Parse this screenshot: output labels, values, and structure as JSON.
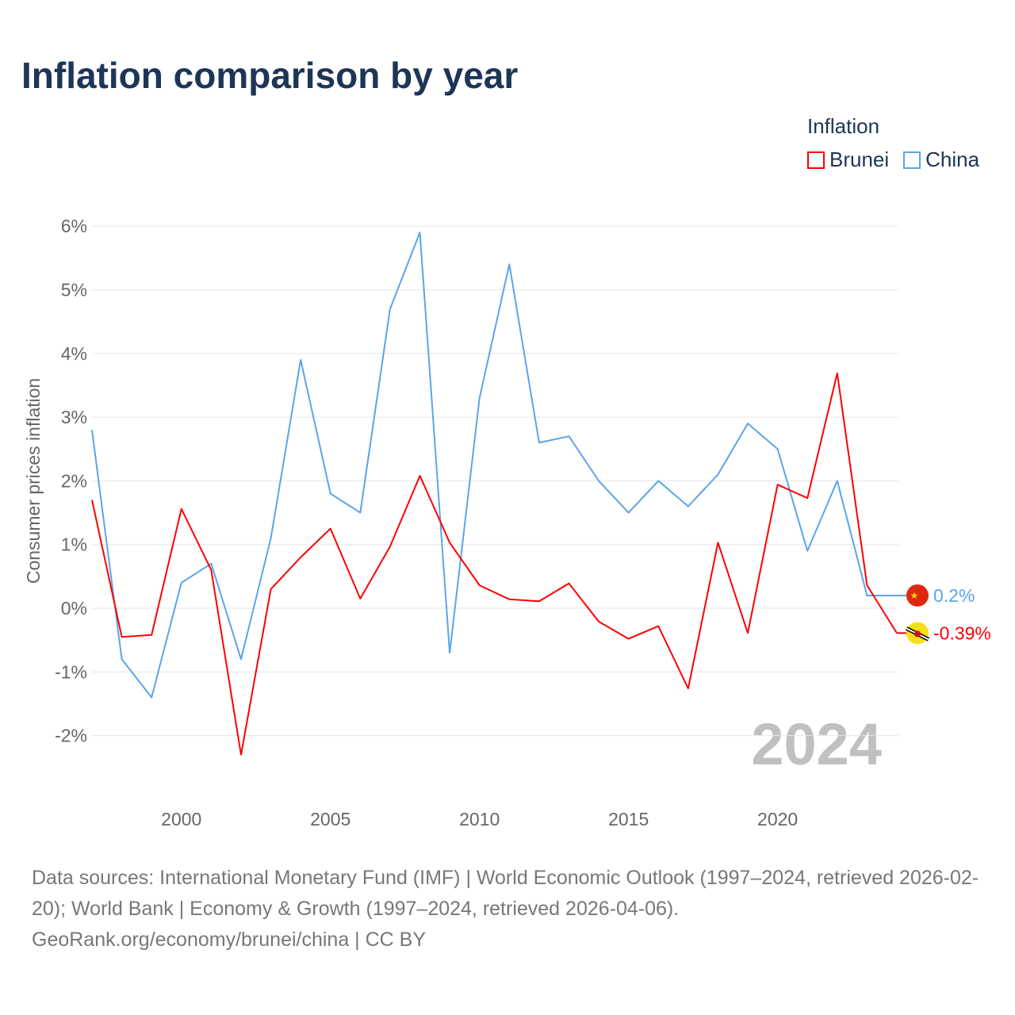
{
  "title": "Inflation comparison by year",
  "legend": {
    "title": "Inflation",
    "items": [
      {
        "label": "Brunei",
        "color": "#ff0000"
      },
      {
        "label": "China",
        "color": "#5ba4ea"
      }
    ]
  },
  "year_watermark": "2024",
  "footer": {
    "sources": "Data sources: International Monetary Fund (IMF) | World Economic Outlook (1997–2024, retrieved 2026-02-20); World Bank | Economy & Growth (1997–2024, retrieved 2026-04-06).",
    "credit": "GeoRank.org/economy/brunei/china | CC BY"
  },
  "chart_data": {
    "type": "line",
    "title": "Inflation comparison by year",
    "xlabel": "",
    "ylabel": "Consumer prices inflation",
    "x": [
      1997,
      1998,
      1999,
      2000,
      2001,
      2002,
      2003,
      2004,
      2005,
      2006,
      2007,
      2008,
      2009,
      2010,
      2011,
      2012,
      2013,
      2014,
      2015,
      2016,
      2017,
      2018,
      2019,
      2020,
      2021,
      2022,
      2023,
      2024
    ],
    "xlim": [
      1997,
      2024
    ],
    "ylim": [
      -3,
      6.4
    ],
    "x_ticks": [
      2000,
      2005,
      2010,
      2015,
      2020
    ],
    "y_ticks": [
      {
        "v": -2,
        "label": "-2%"
      },
      {
        "v": -1,
        "label": "-1%"
      },
      {
        "v": 0,
        "label": "0%"
      },
      {
        "v": 1,
        "label": "1%"
      },
      {
        "v": 2,
        "label": "2%"
      },
      {
        "v": 3,
        "label": "3%"
      },
      {
        "v": 4,
        "label": "4%"
      },
      {
        "v": 5,
        "label": "5%"
      },
      {
        "v": 6,
        "label": "6%"
      }
    ],
    "grid": true,
    "legend_position": "top-right",
    "series": [
      {
        "name": "Brunei",
        "color": "#ff0000",
        "end_label": "-0.39%",
        "values": [
          1.7,
          -0.45,
          -0.42,
          1.56,
          0.6,
          -2.3,
          0.3,
          0.8,
          1.25,
          0.15,
          0.97,
          2.08,
          1.03,
          0.36,
          0.14,
          0.11,
          0.39,
          -0.21,
          -0.48,
          -0.28,
          -1.26,
          1.03,
          -0.39,
          1.94,
          1.73,
          3.69,
          0.36,
          -0.39
        ]
      },
      {
        "name": "China",
        "color": "#5ba4ea",
        "end_label": "0.2%",
        "values": [
          2.8,
          -0.8,
          -1.4,
          0.4,
          0.7,
          -0.8,
          1.1,
          3.9,
          1.8,
          1.5,
          4.7,
          5.9,
          -0.7,
          3.3,
          5.4,
          2.6,
          2.7,
          2.0,
          1.5,
          2.0,
          1.6,
          2.1,
          2.9,
          2.5,
          0.9,
          2.0,
          0.2,
          0.2
        ]
      }
    ]
  }
}
